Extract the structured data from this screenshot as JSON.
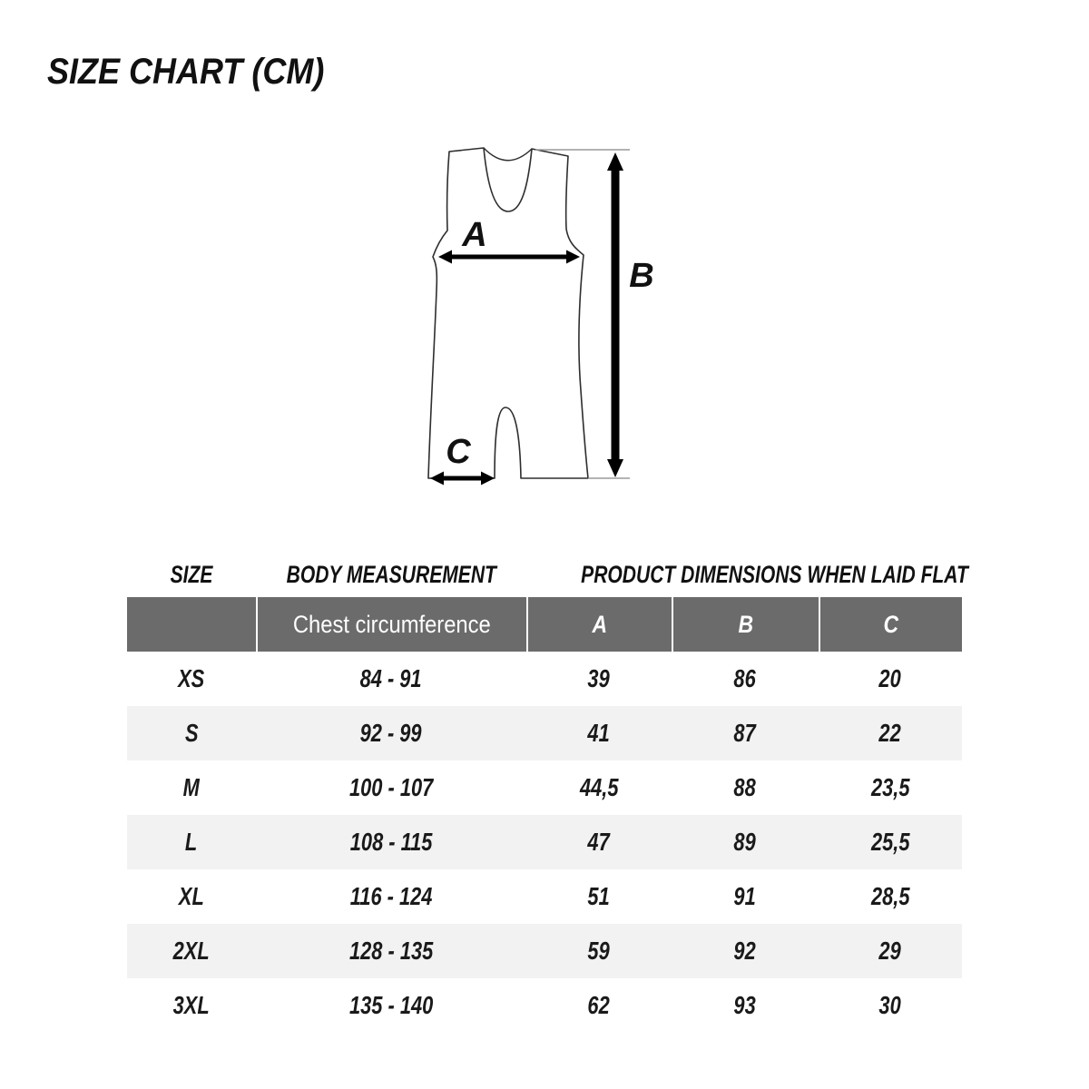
{
  "title": "SIZE CHART (CM)",
  "diagram": {
    "label_a": "A",
    "label_b": "B",
    "label_c": "C"
  },
  "table": {
    "group_headers": [
      "SIZE",
      "BODY MEASUREMENT",
      "PRODUCT DIMENSIONS WHEN LAID FLAT"
    ],
    "sub_headers": {
      "chest": "Chest circumference",
      "a": "A",
      "b": "B",
      "c": "C"
    },
    "rows": [
      {
        "size": "XS",
        "chest": "84 - 91",
        "a": "39",
        "b": "86",
        "c": "20"
      },
      {
        "size": "S",
        "chest": "92 - 99",
        "a": "41",
        "b": "87",
        "c": "22"
      },
      {
        "size": "M",
        "chest": "100 - 107",
        "a": "44,5",
        "b": "88",
        "c": "23,5"
      },
      {
        "size": "L",
        "chest": "108 - 115",
        "a": "47",
        "b": "89",
        "c": "25,5"
      },
      {
        "size": "XL",
        "chest": "116 - 124",
        "a": "51",
        "b": "91",
        "c": "28,5"
      },
      {
        "size": "2XL",
        "chest": "128 - 135",
        "a": "59",
        "b": "92",
        "c": "29"
      },
      {
        "size": "3XL",
        "chest": "135 - 140",
        "a": "62",
        "b": "93",
        "c": "30"
      }
    ],
    "colors": {
      "header_bg": "#6b6b6b",
      "header_text": "#ffffff",
      "row_alt_bg": "#f2f2f2",
      "text": "#1a1a1a"
    }
  },
  "chart_data": {
    "type": "table",
    "title": "SIZE CHART (CM)",
    "unit": "cm",
    "columns": [
      "SIZE",
      "Chest circumference (body measurement)",
      "A (product laid flat)",
      "B (product laid flat)",
      "C (product laid flat)"
    ],
    "rows": [
      [
        "XS",
        "84 - 91",
        39,
        86,
        20
      ],
      [
        "S",
        "92 - 99",
        41,
        87,
        22
      ],
      [
        "M",
        "100 - 107",
        44.5,
        88,
        23.5
      ],
      [
        "L",
        "108 - 115",
        47,
        89,
        25.5
      ],
      [
        "XL",
        "116 - 124",
        51,
        91,
        28.5
      ],
      [
        "2XL",
        "128 - 135",
        59,
        92,
        29
      ],
      [
        "3XL",
        "135 - 140",
        62,
        93,
        30
      ]
    ],
    "diagram_legend": "A = chest width, B = total length, C = leg opening width of sleeveless singlet"
  }
}
